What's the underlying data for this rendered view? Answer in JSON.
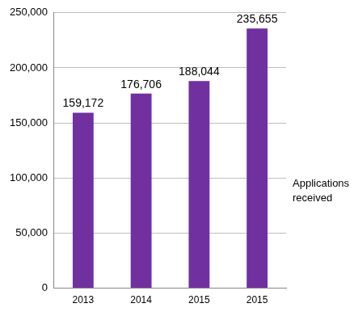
{
  "chart_data": {
    "type": "bar",
    "categories": [
      "2013",
      "2014",
      "2015",
      "2015"
    ],
    "series": [
      {
        "name": "Applications received",
        "color": "#7030a0",
        "values": [
          159172,
          176706,
          188044,
          235655
        ],
        "value_labels": [
          "159,172",
          "176,706",
          "188,044",
          "235,655"
        ]
      }
    ],
    "ylim": [
      0,
      250000
    ],
    "yticks": [
      0,
      {
        "value": 50000,
        "label": "50,000"
      },
      {
        "value": 100000,
        "label": "100,000"
      },
      {
        "value": 150000,
        "label": "150,000"
      },
      {
        "value": 200000,
        "label": "200,000"
      },
      {
        "value": 250000,
        "label": "250,000"
      }
    ],
    "grid": true,
    "data_labels": true,
    "legend": "right"
  }
}
